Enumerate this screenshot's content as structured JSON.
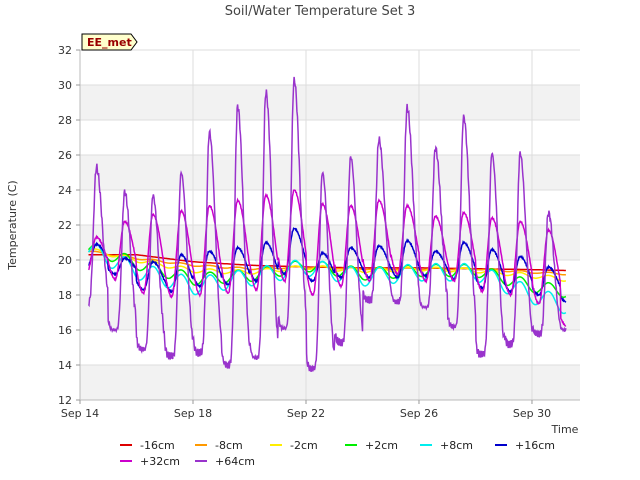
{
  "chart_data": {
    "type": "line",
    "title": "Soil/Water Temperature Set 3",
    "xlabel": "Time",
    "ylabel": "Temperature (C)",
    "badge": "EE_met",
    "xlim": [
      0,
      17.7
    ],
    "ylim": [
      12,
      32
    ],
    "x_ticks": [
      {
        "x": 0,
        "label": "Sep 14"
      },
      {
        "x": 4,
        "label": "Sep 18"
      },
      {
        "x": 8,
        "label": "Sep 22"
      },
      {
        "x": 12,
        "label": "Sep 26"
      },
      {
        "x": 16,
        "label": "Sep 30"
      }
    ],
    "y_ticks": [
      12,
      14,
      16,
      18,
      20,
      22,
      24,
      26,
      28,
      30,
      32
    ],
    "grid": true,
    "legend_position": "bottom",
    "series": [
      {
        "name": "-16cm",
        "color": "#dd0000",
        "x": [
          0.3,
          2,
          4,
          6,
          8,
          10,
          12,
          14,
          16,
          17.2
        ],
        "y": [
          20.3,
          20.3,
          19.9,
          19.7,
          19.6,
          19.55,
          19.55,
          19.5,
          19.45,
          19.4
        ]
      },
      {
        "name": "-8cm",
        "color": "#ff9900",
        "x": [
          0.3,
          2,
          4,
          6,
          8,
          10,
          12,
          14,
          16,
          17.2
        ],
        "y": [
          20.5,
          20.1,
          19.7,
          19.5,
          19.6,
          19.5,
          19.5,
          19.5,
          19.3,
          19.2
        ]
      },
      {
        "name": "-2cm",
        "color": "#ffee00",
        "x": [
          0.3,
          2,
          4,
          6,
          8,
          10,
          12,
          14,
          16,
          17.2
        ],
        "y": [
          20.6,
          20.0,
          19.4,
          19.3,
          19.6,
          19.4,
          19.5,
          19.4,
          19.1,
          18.9
        ]
      },
      {
        "name": "+2cm",
        "color": "#00ee00",
        "x": [
          0.3,
          2,
          4,
          6,
          8,
          10,
          12,
          14,
          16,
          17.2
        ],
        "y": [
          20.7,
          19.8,
          18.9,
          19.1,
          19.7,
          19.2,
          19.4,
          19.4,
          18.5,
          18.2
        ]
      },
      {
        "name": "+8cm",
        "color": "#00eeee",
        "x": [
          0.3,
          2,
          4,
          6,
          8,
          10,
          12,
          14,
          16,
          17.2
        ],
        "y": [
          20.6,
          19.4,
          18.5,
          19.0,
          19.6,
          19.0,
          19.3,
          19.3,
          18.0,
          17.4
        ]
      },
      {
        "name": "+16cm",
        "color": "#0000cc",
        "x": [
          0.3,
          2,
          4,
          6,
          8,
          10,
          12,
          14,
          16,
          17.2
        ],
        "y": [
          20.4,
          19.0,
          18.6,
          19.2,
          19.8,
          19.1,
          19.4,
          19.4,
          18.3,
          17.6
        ]
      },
      {
        "name": "+32cm",
        "color": "#cc00cc",
        "x": [
          0.3,
          2,
          4,
          6,
          8,
          10,
          12,
          14,
          16,
          17.2
        ],
        "y": [
          20.2,
          18.8,
          18.6,
          19.4,
          19.6,
          19.1,
          19.4,
          19.6,
          18.8,
          16.2
        ]
      },
      {
        "name": "+64cm",
        "color": "#9933cc",
        "x": [
          0.3,
          2,
          4,
          6,
          8,
          10,
          12,
          14,
          16,
          17.2
        ],
        "y": [
          18.6,
          17.8,
          17.6,
          18.2,
          18.2,
          17.8,
          18.2,
          18.2,
          17.8,
          16.0
        ]
      }
    ],
    "daily_peaks": {
      "+64cm": [
        25.3,
        23.9,
        23.7,
        25.0,
        27.3,
        28.8,
        29.6,
        30.3,
        25.0,
        25.9,
        26.9,
        28.7,
        26.4,
        28.2,
        26.1,
        26.1,
        22.7,
        18.4
      ],
      "+32cm": [
        21.3,
        22.2,
        22.6,
        22.8,
        23.1,
        23.4,
        23.7,
        24.0,
        23.2,
        23.1,
        23.4,
        23.1,
        22.5,
        22.7,
        22.4,
        22.2,
        21.7,
        18.0
      ],
      "+16cm": [
        20.9,
        20.1,
        19.9,
        20.3,
        20.5,
        20.7,
        21.0,
        21.8,
        20.4,
        20.7,
        20.8,
        21.1,
        20.5,
        21.0,
        20.6,
        20.2,
        19.6,
        18.6
      ]
    },
    "daily_troughs": {
      "+64cm": [
        17.5,
        16.0,
        14.9,
        14.5,
        14.7,
        14.0,
        14.4,
        16.1,
        13.8,
        15.3,
        17.7,
        17.6,
        17.3,
        16.2,
        14.6,
        15.2,
        15.8,
        16.0
      ],
      "+32cm": [
        19.3,
        18.9,
        18.1,
        17.9,
        18.0,
        18.1,
        18.3,
        18.8,
        18.0,
        18.5,
        18.8,
        19.2,
        18.8,
        18.8,
        18.2,
        18.0,
        17.5,
        16.2
      ],
      "+16cm": [
        19.6,
        19.2,
        18.3,
        18.2,
        18.5,
        18.6,
        18.8,
        19.2,
        18.8,
        19.0,
        19.0,
        19.0,
        19.1,
        18.9,
        18.4,
        18.2,
        18.0,
        17.6
      ]
    }
  }
}
